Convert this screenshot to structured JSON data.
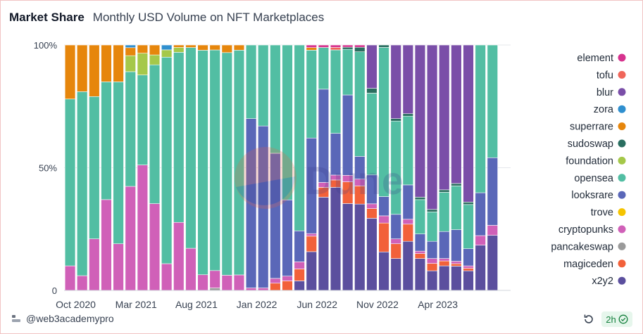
{
  "header": {
    "title": "Market Share",
    "subtitle": "Monthly USD Volume on NFT Marketplaces"
  },
  "footer": {
    "user": "@web3academypro",
    "refresh_age": "2h"
  },
  "icons": {
    "user": "user-icon",
    "refresh": "refresh-icon",
    "status": "check-circle-icon"
  },
  "chart_data": {
    "type": "bar",
    "stacked": true,
    "normalized": true,
    "ylim": [
      0,
      100
    ],
    "y_ticks": [
      "0",
      "50%",
      "100%"
    ],
    "x_tick_labels": [
      {
        "label": "Oct 2020",
        "index": 0
      },
      {
        "label": "Mar 2021",
        "index": 5
      },
      {
        "label": "Aug 2021",
        "index": 10
      },
      {
        "label": "Jan 2022",
        "index": 15
      },
      {
        "label": "Jun 2022",
        "index": 20
      },
      {
        "label": "Nov 2022",
        "index": 25
      },
      {
        "label": "Apr 2023",
        "index": 30
      }
    ],
    "grid": true,
    "legend_position": "right",
    "watermark": "Dune",
    "categories": [
      "Oct 2020",
      "Nov 2020",
      "Dec 2020",
      "Jan 2021",
      "Feb 2021",
      "Mar 2021",
      "Apr 2021",
      "May 2021",
      "Jun 2021",
      "Jul 2021",
      "Aug 2021",
      "Sep 2021",
      "Oct 2021",
      "Nov 2021",
      "Dec 2021",
      "Jan 2022",
      "Feb 2022",
      "Mar 2022",
      "Apr 2022",
      "May 2022",
      "Jun 2022",
      "Jul 2022",
      "Aug 2022",
      "Sep 2022",
      "Oct 2022",
      "Nov 2022",
      "Dec 2022",
      "Jan 2023",
      "Feb 2023",
      "Mar 2023",
      "Apr 2023",
      "May 2023",
      "Jun 2023",
      "Jul 2023",
      "Aug 2023",
      "Sep 2023",
      "Oct 2023"
    ],
    "series": [
      {
        "name": "x2y2",
        "color": "#5b4f9e",
        "values": [
          0,
          0,
          0,
          0,
          0,
          0,
          0,
          0,
          0,
          0,
          0,
          0,
          0,
          0,
          0,
          0,
          0,
          0,
          0,
          4,
          15,
          38,
          42,
          40,
          38,
          30,
          16,
          13,
          20,
          13,
          8,
          10,
          10,
          8,
          19,
          22,
          0
        ]
      },
      {
        "name": "magiceden",
        "color": "#f2613a",
        "values": [
          0,
          0,
          0,
          0,
          0,
          0,
          0,
          0,
          0,
          0,
          0,
          0,
          0,
          0,
          0,
          0,
          0,
          3,
          4,
          5,
          6,
          4,
          3,
          10,
          8,
          4,
          12,
          6,
          7,
          2,
          3,
          2,
          1,
          1,
          0,
          0,
          0
        ]
      },
      {
        "name": "pancakeswap",
        "color": "#9a9a9a",
        "values": [
          0,
          0,
          0,
          0,
          0,
          0,
          0,
          0,
          0,
          0,
          0,
          0,
          1,
          0,
          0,
          0,
          0,
          0,
          0,
          0,
          0,
          0,
          0,
          0,
          0,
          0,
          0,
          0,
          0,
          0,
          0,
          0,
          0,
          0,
          0,
          0,
          0
        ]
      },
      {
        "name": "cryptopunks",
        "color": "#d060b8",
        "values": [
          10,
          6,
          21,
          37,
          19,
          39,
          46,
          35,
          11,
          28,
          17,
          6,
          7,
          6,
          6,
          1,
          1,
          2,
          2,
          3,
          1,
          2,
          2,
          3,
          3,
          2,
          3,
          2,
          2,
          1,
          2,
          1,
          1,
          1,
          4,
          4,
          0
        ]
      },
      {
        "name": "trove",
        "color": "#f5c400",
        "values": [
          0,
          0,
          0,
          0,
          0,
          0,
          0,
          0,
          0,
          0,
          0,
          0,
          0,
          0,
          0,
          0,
          0,
          0,
          0,
          0,
          0,
          0,
          0,
          0,
          0,
          0,
          0,
          0,
          0,
          0,
          0,
          0,
          0,
          0,
          0,
          0,
          0
        ]
      },
      {
        "name": "looksrare",
        "color": "#5a67b8",
        "values": [
          0,
          0,
          0,
          0,
          0,
          0,
          0,
          0,
          0,
          0,
          0,
          0,
          0,
          0,
          0,
          69,
          66,
          52,
          32,
          13,
          37,
          38,
          17,
          37,
          10,
          12,
          8,
          10,
          14,
          7,
          7,
          11,
          13,
          7,
          18,
          27,
          0
        ]
      },
      {
        "name": "opensea",
        "color": "#52bea3",
        "values": [
          68,
          75,
          58,
          48,
          66,
          43,
          33,
          56,
          85,
          70,
          81,
          86,
          89,
          88,
          87,
          30,
          33,
          45,
          65,
          78,
          34,
          17,
          34,
          21,
          46,
          34,
          62,
          38,
          28,
          14,
          12,
          16,
          18,
          18,
          62,
          45,
          0
        ]
      },
      {
        "name": "foundation",
        "color": "#a5c84a",
        "values": [
          0,
          0,
          0,
          0,
          0,
          6,
          8,
          4,
          3,
          2,
          0,
          0,
          0,
          0,
          0,
          0,
          0,
          0,
          0,
          0,
          0,
          0,
          0,
          0,
          0,
          0,
          0,
          0,
          0,
          0,
          0,
          0,
          0,
          0,
          0,
          0,
          0
        ]
      },
      {
        "name": "sudoswap",
        "color": "#2a6e60",
        "values": [
          0,
          0,
          0,
          0,
          0,
          0,
          0,
          0,
          0,
          0,
          0,
          0,
          0,
          0,
          0,
          0,
          0,
          0,
          0,
          0,
          0,
          0,
          0,
          1,
          2,
          2,
          1,
          1,
          1,
          1,
          1,
          1,
          1,
          1,
          0,
          0,
          0
        ]
      },
      {
        "name": "superrare",
        "color": "#e6860c",
        "values": [
          22,
          19,
          21,
          15,
          15,
          3,
          3,
          4,
          0,
          1,
          1,
          2,
          2,
          3,
          2,
          0,
          0,
          0,
          0,
          0,
          1,
          0,
          0,
          0,
          0,
          0,
          0,
          0,
          0,
          0,
          0,
          0,
          0,
          0,
          0,
          0,
          0
        ]
      },
      {
        "name": "zora",
        "color": "#2f8fcf",
        "values": [
          0,
          0,
          0,
          0,
          0,
          1,
          0,
          0,
          2,
          0,
          0,
          0,
          0,
          0,
          0,
          0,
          0,
          0,
          0,
          0,
          0,
          0,
          0,
          0,
          0,
          0,
          0,
          0,
          0,
          0,
          0,
          0,
          0,
          0,
          0,
          0,
          0
        ]
      },
      {
        "name": "blur",
        "color": "#7a4ea8",
        "values": [
          0,
          0,
          0,
          0,
          0,
          0,
          0,
          0,
          0,
          0,
          0,
          0,
          0,
          0,
          0,
          0,
          0,
          0,
          0,
          0,
          0,
          0,
          0,
          0,
          0,
          18,
          0,
          30,
          28,
          62,
          67,
          59,
          57,
          64,
          0,
          0,
          0
        ]
      },
      {
        "name": "tofu",
        "color": "#f0665a",
        "values": [
          0,
          0,
          0,
          0,
          0,
          0,
          0,
          0,
          0,
          0,
          0,
          0,
          0,
          0,
          0,
          0,
          0,
          0,
          0,
          0,
          0,
          0,
          1,
          0,
          0,
          0,
          0,
          0,
          0,
          0,
          0,
          0,
          0,
          0,
          0,
          0,
          0
        ]
      },
      {
        "name": "element",
        "color": "#d6338e",
        "values": [
          0,
          0,
          0,
          0,
          0,
          0,
          0,
          0,
          0,
          0,
          0,
          0,
          0,
          0,
          0,
          0,
          0,
          0,
          0,
          0,
          1,
          1,
          1,
          1,
          1,
          0,
          0,
          0,
          0,
          0,
          0,
          0,
          0,
          0,
          0,
          0,
          0
        ]
      }
    ]
  }
}
